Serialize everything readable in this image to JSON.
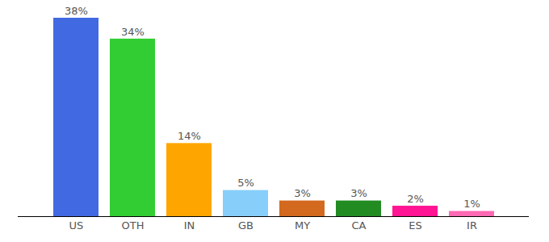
{
  "chart_data": {
    "type": "bar",
    "categories": [
      "US",
      "OTH",
      "IN",
      "GB",
      "MY",
      "CA",
      "ES",
      "IR"
    ],
    "values": [
      38,
      34,
      14,
      5,
      3,
      3,
      2,
      1
    ],
    "value_labels": [
      "38%",
      "34%",
      "14%",
      "5%",
      "3%",
      "3%",
      "2%",
      "1%"
    ],
    "colors": [
      "#4169e1",
      "#32cd32",
      "#ffa500",
      "#87cefa",
      "#d2691e",
      "#228b22",
      "#ff1493",
      "#ff69b4"
    ],
    "ylim": [
      0,
      38
    ],
    "data_labels": true,
    "tick_labels": "x"
  }
}
